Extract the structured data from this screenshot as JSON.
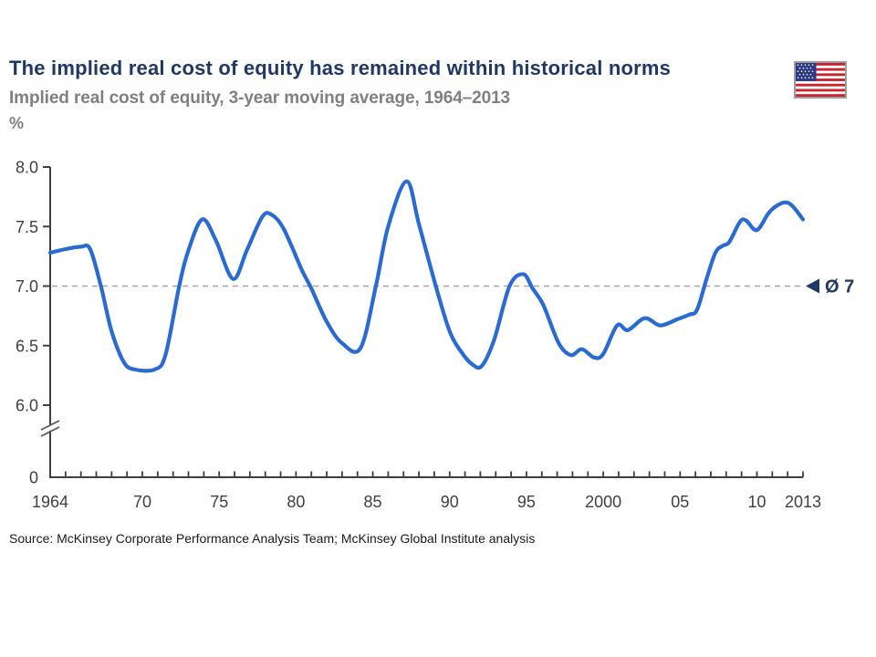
{
  "slide": {
    "title": "The implied real cost of equity has remained within historical norms",
    "subtitle": "Implied real cost of equity, 3-year moving average, 1964–2013",
    "unit_label": "%",
    "source": "Source: McKinsey Corporate Performance Analysis Team; McKinsey Global Institute analysis",
    "flag_country": "United States"
  },
  "colors": {
    "title_navy": "#1F3864",
    "subtitle_gray": "#808080",
    "curve_blue": "#2A6BD2",
    "axis_gray": "#3F3F3F",
    "label_gray": "#404040",
    "dashed_gray": "#A6A6A6",
    "flag_red": "#C8242E",
    "flag_navy": "#2D3A8C"
  },
  "chart_data": {
    "type": "line",
    "title": "Implied real cost of equity, 3-year moving average, 1964–2013",
    "xlabel": "",
    "ylabel": "%",
    "x_range": [
      1964,
      2013
    ],
    "y_axis": {
      "shown_values": [
        8.0,
        7.5,
        7.0,
        6.5,
        6.0,
        0
      ],
      "broken_axis": true,
      "break_between": [
        0,
        6.0
      ]
    },
    "grid": "none",
    "legend_position": "none",
    "y_ticks": [
      {
        "v": 8.0,
        "label": "8.0"
      },
      {
        "v": 7.5,
        "label": "7.5"
      },
      {
        "v": 7.0,
        "label": "7.0"
      },
      {
        "v": 6.5,
        "label": "6.5"
      },
      {
        "v": 6.0,
        "label": "6.0"
      },
      {
        "v": 0,
        "label": "0"
      }
    ],
    "x_ticks": [
      {
        "x": 1964,
        "label": "1964"
      },
      {
        "x": 1970,
        "label": "70"
      },
      {
        "x": 1975,
        "label": "75"
      },
      {
        "x": 1980,
        "label": "80"
      },
      {
        "x": 1985,
        "label": "85"
      },
      {
        "x": 1990,
        "label": "90"
      },
      {
        "x": 1995,
        "label": "95"
      },
      {
        "x": 2000,
        "label": "2000"
      },
      {
        "x": 2005,
        "label": "05"
      },
      {
        "x": 2010,
        "label": "10"
      },
      {
        "x": 2013,
        "label": "2013"
      }
    ],
    "minor_x_tick_every_year": true,
    "average_line": {
      "value": 7.0,
      "label": "Ø 7",
      "style": "dashed",
      "marker": "left-triangle"
    },
    "series": [
      {
        "name": "Implied real cost of equity, 3-year moving average",
        "points": [
          [
            1964,
            7.28
          ],
          [
            1965,
            7.31
          ],
          [
            1966,
            7.33
          ],
          [
            1966.6,
            7.31
          ],
          [
            1967.3,
            7.0
          ],
          [
            1968,
            6.62
          ],
          [
            1968.8,
            6.36
          ],
          [
            1969.5,
            6.3
          ],
          [
            1970.8,
            6.3
          ],
          [
            1971.5,
            6.42
          ],
          [
            1972.4,
            7.0
          ],
          [
            1973,
            7.3
          ],
          [
            1973.9,
            7.56
          ],
          [
            1974.8,
            7.38
          ],
          [
            1975.9,
            7.06
          ],
          [
            1976.8,
            7.3
          ],
          [
            1977.8,
            7.58
          ],
          [
            1978.4,
            7.6
          ],
          [
            1979.2,
            7.48
          ],
          [
            1980.4,
            7.13
          ],
          [
            1981,
            6.98
          ],
          [
            1982,
            6.7
          ],
          [
            1983,
            6.52
          ],
          [
            1984.2,
            6.48
          ],
          [
            1985.2,
            7.0
          ],
          [
            1986,
            7.5
          ],
          [
            1987.2,
            7.88
          ],
          [
            1988,
            7.52
          ],
          [
            1989.1,
            7.0
          ],
          [
            1990,
            6.62
          ],
          [
            1990.8,
            6.44
          ],
          [
            1991.5,
            6.34
          ],
          [
            1992.1,
            6.33
          ],
          [
            1992.9,
            6.55
          ],
          [
            1993.9,
            7.0
          ],
          [
            1994.8,
            7.1
          ],
          [
            1995.4,
            6.98
          ],
          [
            1996.1,
            6.84
          ],
          [
            1997.1,
            6.52
          ],
          [
            1997.9,
            6.42
          ],
          [
            1998.6,
            6.47
          ],
          [
            1999.4,
            6.4
          ],
          [
            2000,
            6.43
          ],
          [
            2000.9,
            6.67
          ],
          [
            2001.6,
            6.63
          ],
          [
            2002.7,
            6.73
          ],
          [
            2003.7,
            6.67
          ],
          [
            2004.8,
            6.72
          ],
          [
            2005.6,
            6.76
          ],
          [
            2006.1,
            6.8
          ],
          [
            2006.7,
            7.05
          ],
          [
            2007.3,
            7.28
          ],
          [
            2007.8,
            7.34
          ],
          [
            2008.2,
            7.37
          ],
          [
            2008.9,
            7.54
          ],
          [
            2009.3,
            7.55
          ],
          [
            2010,
            7.47
          ],
          [
            2010.8,
            7.62
          ],
          [
            2011.5,
            7.69
          ],
          [
            2012,
            7.7
          ],
          [
            2012.4,
            7.66
          ],
          [
            2013,
            7.56
          ]
        ]
      }
    ]
  }
}
